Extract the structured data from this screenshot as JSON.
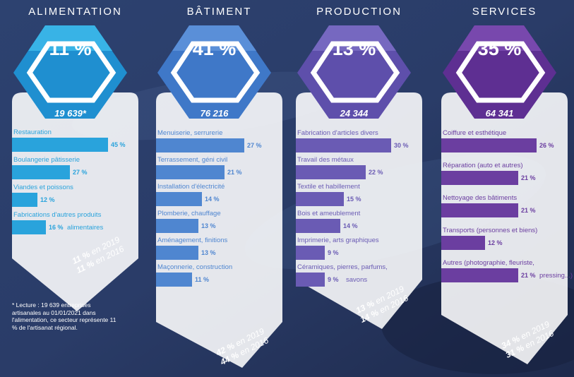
{
  "note": "* Lecture : 19 639 entreprises artisanales au 01/01/2021 dans l'alimentation, ce secteur représente 11 % de l'artisanat régional.",
  "colors": {
    "alimentation": "#29a3dc",
    "batiment": "#4f86d0",
    "production": "#6a5bb4",
    "services": "#6b3ea0"
  },
  "chart_data": [
    {
      "type": "bar",
      "orientation": "horizontal",
      "title": "ALIMENTATION",
      "share": "11 %",
      "total": "19 639*",
      "categories": [
        "Restauration",
        "Boulangerie pâtisserie",
        "Viandes et poissons",
        "Fabrications d'autres produits alimentaires"
      ],
      "category_lines": [
        [
          "Restauration"
        ],
        [
          "Boulangerie pâtisserie"
        ],
        [
          "Viandes et poissons"
        ],
        [
          "Fabrications d'autres produits",
          "alimentaires"
        ]
      ],
      "values": [
        45,
        27,
        12,
        16
      ],
      "value_labels": [
        "45 %",
        "27 %",
        "12 %",
        "16 %"
      ],
      "xlim": [
        0,
        45
      ],
      "trend_2019": {
        "value": "11 %",
        "text": "en 2019"
      },
      "trend_2016": {
        "value": "11 %",
        "text": "en 2016"
      }
    },
    {
      "type": "bar",
      "orientation": "horizontal",
      "title": "BÂTIMENT",
      "share": "41 %",
      "total": "76 216",
      "categories": [
        "Menuiserie, serrurerie",
        "Terrassement, géni civil",
        "Installation d'électricité",
        "Plomberie, chauffage",
        "Aménagement, finitions",
        "Maçonnerie, construction"
      ],
      "values": [
        27,
        21,
        14,
        13,
        13,
        11
      ],
      "value_labels": [
        "27 %",
        "21 %",
        "14 %",
        "13 %",
        "13 %",
        "11 %"
      ],
      "xlim": [
        0,
        27
      ],
      "trend_2019": {
        "value": "42 %",
        "text": "en 2019"
      },
      "trend_2016": {
        "value": "44 %",
        "text": "en 2016"
      }
    },
    {
      "type": "bar",
      "orientation": "horizontal",
      "title": "PRODUCTION",
      "share": "13 %",
      "total": "24 344",
      "categories": [
        "Fabrication d'articles divers",
        "Travail des métaux",
        "Textile et habillement",
        "Bois et ameublement",
        "Imprimerie, arts graphiques",
        "Céramiques, pierres, parfums, savons"
      ],
      "category_lines": [
        [
          "Fabrication d'articles divers"
        ],
        [
          "Travail des métaux"
        ],
        [
          "Textile et habillement"
        ],
        [
          "Bois et ameublement"
        ],
        [
          "Imprimerie, arts graphiques"
        ],
        [
          "Céramiques, pierres, parfums,",
          "savons"
        ]
      ],
      "values": [
        30,
        22,
        15,
        14,
        9,
        9
      ],
      "value_labels": [
        "30 %",
        "22 %",
        "15 %",
        "14 %",
        "9 %",
        "9 %"
      ],
      "xlim": [
        0,
        30
      ],
      "trend_2019": {
        "value": "13 %",
        "text": "en 2019"
      },
      "trend_2016": {
        "value": "14 %",
        "text": "en 2016"
      }
    },
    {
      "type": "bar",
      "orientation": "horizontal",
      "title": "SERVICES",
      "share": "35 %",
      "total": "64 341",
      "categories": [
        "Coiffure et esthétique",
        "Réparation (auto et autres)",
        "Nettoyage des bâtiments",
        "Transports (personnes et biens)",
        "Autres (photographie, fleuriste, pressing...)"
      ],
      "category_lines": [
        [
          "Coiffure et esthétique"
        ],
        [
          "Réparation (auto et autres)"
        ],
        [
          "Nettoyage des bâtiments"
        ],
        [
          "Transports (personnes et biens)"
        ],
        [
          "Autres (photographie, fleuriste,",
          "pressing...)"
        ]
      ],
      "values": [
        26,
        21,
        21,
        12,
        21
      ],
      "value_labels": [
        "26 %",
        "21 %",
        "21 %",
        "12 %",
        "21 %"
      ],
      "xlim": [
        0,
        26
      ],
      "trend_2019": {
        "value": "34 %",
        "text": "en 2019"
      },
      "trend_2016": {
        "value": "31 %",
        "text": "en 2016"
      }
    }
  ]
}
